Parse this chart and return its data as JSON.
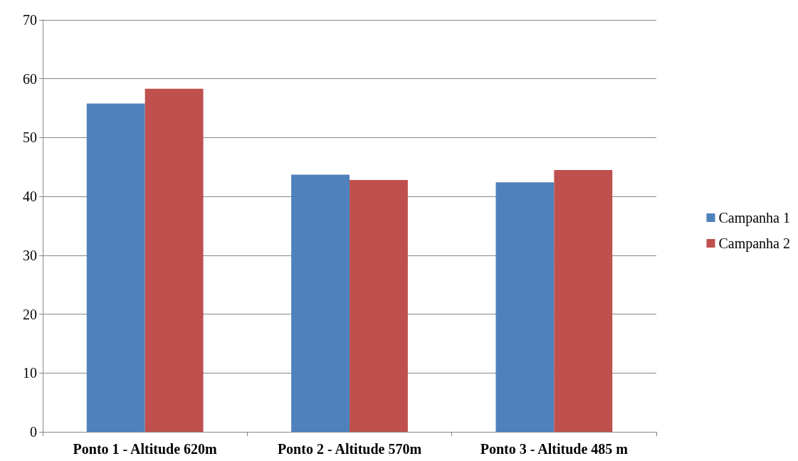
{
  "chart_data": {
    "type": "bar",
    "categories": [
      "Ponto 1 - Altitude 620m",
      "Ponto 2 - Altitude 570m",
      "Ponto 3 - Altitude 485 m"
    ],
    "series": [
      {
        "name": "Campanha 1",
        "color": "#4f81bd",
        "values": [
          55.8,
          43.7,
          42.4
        ]
      },
      {
        "name": "Campanha 2",
        "color": "#c0504d",
        "values": [
          58.3,
          42.8,
          44.5
        ]
      }
    ],
    "ylim": [
      0,
      70
    ],
    "yticks": [
      0,
      10,
      20,
      30,
      40,
      50,
      60,
      70
    ],
    "grid": "y",
    "legend": "right"
  }
}
